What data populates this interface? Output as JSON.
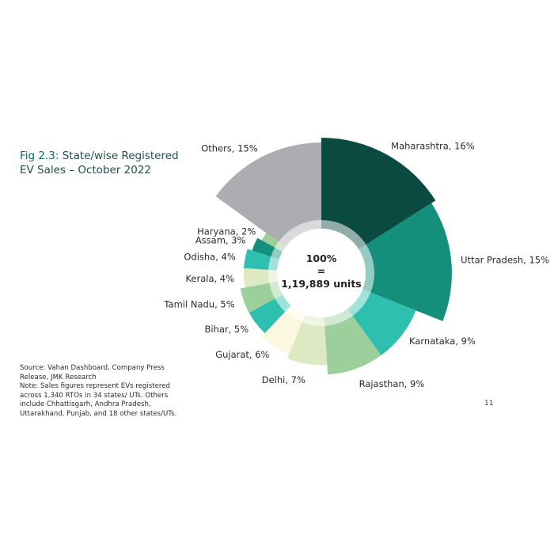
{
  "figure": {
    "number": "Fig 2.3:",
    "title_line1": "State/wise Registered",
    "title_line2": "EV Sales – October 2022"
  },
  "notes": {
    "source_line1": "Source: Vahan Dashboard, Company Press",
    "source_line2": "Release, JMK Research",
    "note_line1": "Note: Sales figures represent EVs registered",
    "note_line2": "across 1,340 RTOs in 34 states/ UTs. Others",
    "note_line3": "include Chhattisgarh, Andhra Pradesh,",
    "note_line4": "Uttarakhand, Punjab, and 18 other states/UTs."
  },
  "page_number": "11",
  "chart_data": {
    "type": "pie",
    "variant": "rose-donut",
    "title": "State/wise Registered EV Sales – October 2022",
    "center": {
      "line1": "100%",
      "line2": "=",
      "line3": "1,19,889 units"
    },
    "slices": [
      {
        "label": "Maharashtra, 16%",
        "name": "Maharashtra",
        "value": 16,
        "color": "#0b4a40"
      },
      {
        "label": "Uttar Pradesh, 15%",
        "name": "Uttar Pradesh",
        "value": 15,
        "color": "#138f7c"
      },
      {
        "label": "Karnataka, 9%",
        "name": "Karnataka",
        "value": 9,
        "color": "#2fbfae"
      },
      {
        "label": "Rajasthan, 9%",
        "name": "Rajasthan",
        "value": 9,
        "color": "#9ccf9b"
      },
      {
        "label": "Delhi, 7%",
        "name": "Delhi",
        "value": 7,
        "color": "#dce9c2"
      },
      {
        "label": "Gujarat, 6%",
        "name": "Gujarat",
        "value": 6,
        "color": "#fcf8df"
      },
      {
        "label": "Bihar, 5%",
        "name": "Bihar",
        "value": 5,
        "color": "#2fbfae"
      },
      {
        "label": "Tamil Nadu, 5%",
        "name": "Tamil Nadu",
        "value": 5,
        "color": "#9ccf9b"
      },
      {
        "label": "Kerala, 4%",
        "name": "Kerala",
        "value": 4,
        "color": "#dce9c2"
      },
      {
        "label": "Odisha, 4%",
        "name": "Odisha",
        "value": 4,
        "color": "#2fbfae"
      },
      {
        "label": "Assam, 3%",
        "name": "Assam",
        "value": 3,
        "color": "#138f7c"
      },
      {
        "label": "Haryana, 2%",
        "name": "Haryana",
        "value": 2,
        "color": "#9ccf9b"
      },
      {
        "label": "Others, 15%",
        "name": "Others",
        "value": 15,
        "color": "#abadb0"
      }
    ]
  }
}
